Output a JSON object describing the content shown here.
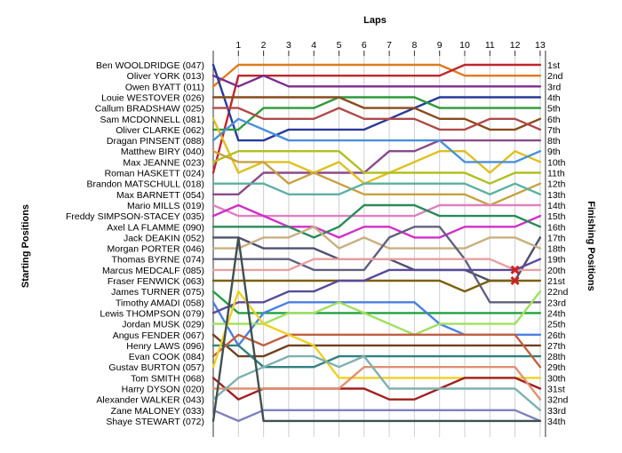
{
  "chart_data": {
    "type": "line",
    "title": "Laps",
    "ylabel_left": "Starting Positions",
    "ylabel_right": "Finishing Positions",
    "x": [
      0,
      1,
      2,
      3,
      4,
      5,
      6,
      7,
      8,
      9,
      10,
      11,
      12,
      13
    ],
    "lap_labels": [
      "1",
      "2",
      "3",
      "4",
      "5",
      "6",
      "7",
      "8",
      "9",
      "10",
      "11",
      "12",
      "13"
    ],
    "drivers": [
      "Ben WOOLDRIDGE (047)",
      "Oliver YORK (013)",
      "Owen BYATT (011)",
      "Louie WESTOVER (026)",
      "Callum BRADSHAW (025)",
      "Sam MCDONNELL (081)",
      "Oliver CLARKE (062)",
      "Dragan PINSENT (088)",
      "Matthew BIRY (040)",
      "Max JEANNE (023)",
      "Roman HASKETT (024)",
      "Brandon MATSCHULL (018)",
      "Max BARNETT (054)",
      "Mario MILLS (019)",
      "Freddy SIMPSON-STACEY (035)",
      "Axel LA FLAMME (090)",
      "Jack DEAKIN (052)",
      "Morgan PORTER (046)",
      "Thomas BYRNE (074)",
      "Marcus MEDCALF (085)",
      "Fraser FENWICK (063)",
      "James TURNER (075)",
      "Timothy AMADI (058)",
      "Lewis THOMPSON (079)",
      "Jordan MUSK (029)",
      "Angus FENDER (067)",
      "Henry LAWS (096)",
      "Evan COOK (084)",
      "Gustav BURTON (057)",
      "Tom SMITH (068)",
      "Harry DYSON (020)",
      "Alexander WALKER (043)",
      "Zane MALONEY (033)",
      "Shaye STEWART (072)"
    ],
    "finishing_positions": [
      "1st",
      "2nd",
      "3rd",
      "4th",
      "5th",
      "6th",
      "7th",
      "8th",
      "9th",
      "10th",
      "11th",
      "12th",
      "13th",
      "14th",
      "15th",
      "16th",
      "17th",
      "18th",
      "19th",
      "20th",
      "21st",
      "22nd",
      "23rd",
      "24th",
      "25th",
      "26th",
      "27th",
      "28th",
      "29th",
      "30th",
      "31st",
      "32nd",
      "33rd",
      "34th"
    ],
    "series": [
      {
        "start": 2,
        "color": "#e07b1e",
        "positions": [
          2,
          0,
          0,
          0,
          0,
          0,
          0,
          0,
          0,
          0,
          1,
          1,
          1,
          1
        ]
      },
      {
        "start": 10,
        "color": "#c0262c",
        "positions": [
          10,
          1,
          1,
          1,
          1,
          1,
          1,
          1,
          1,
          1,
          0,
          0,
          0,
          0
        ]
      },
      {
        "start": 1,
        "color": "#7b2d8f",
        "positions": [
          1,
          2,
          1,
          2,
          2,
          2,
          2,
          2,
          2,
          2,
          2,
          2,
          2,
          2
        ]
      },
      {
        "start": 0,
        "color": "#2a3a9a",
        "positions": [
          0,
          7,
          7,
          6,
          6,
          6,
          6,
          5,
          4,
          3,
          3,
          3,
          3,
          3
        ]
      },
      {
        "start": 6,
        "color": "#2f9a3a",
        "positions": [
          6,
          6,
          4,
          4,
          4,
          3,
          3,
          3,
          3,
          4,
          4,
          4,
          4,
          4
        ]
      },
      {
        "start": 3,
        "color": "#8a4a1c",
        "positions": [
          3,
          3,
          3,
          3,
          3,
          3,
          4,
          4,
          4,
          5,
          5,
          6,
          6,
          5
        ]
      },
      {
        "start": 4,
        "color": "#b04a4a",
        "positions": [
          4,
          4,
          5,
          5,
          5,
          4,
          5,
          5,
          5,
          6,
          6,
          5,
          5,
          6
        ]
      },
      {
        "start": 12,
        "color": "#8a4a8a",
        "positions": [
          12,
          12,
          10,
          10,
          10,
          10,
          10,
          8,
          8,
          7,
          7,
          7,
          7,
          7
        ]
      },
      {
        "start": 5,
        "color": "#e0c020",
        "positions": [
          5,
          10,
          9,
          9,
          10,
          9,
          11,
          10,
          9,
          8,
          8,
          10,
          8,
          9
        ]
      },
      {
        "start": 7,
        "color": "#4a90d9",
        "positions": [
          7,
          5,
          6,
          7,
          7,
          7,
          7,
          7,
          7,
          7,
          9,
          9,
          9,
          8
        ]
      },
      {
        "start": 9,
        "color": "#b0c020",
        "positions": [
          9,
          8,
          8,
          8,
          8,
          8,
          10,
          10,
          10,
          10,
          10,
          11,
          10,
          10
        ]
      },
      {
        "start": 8,
        "color": "#c8a040",
        "positions": [
          8,
          9,
          9,
          11,
          10,
          11,
          12,
          12,
          12,
          12,
          12,
          13,
          12,
          11
        ]
      },
      {
        "start": 11,
        "color": "#5ab0a0",
        "positions": [
          11,
          11,
          11,
          12,
          12,
          12,
          11,
          11,
          11,
          11,
          11,
          12,
          11,
          12
        ]
      },
      {
        "start": 13,
        "color": "#e080c0",
        "positions": [
          13,
          14,
          14,
          14,
          14,
          14,
          14,
          14,
          14,
          13,
          13,
          13,
          13,
          13
        ]
      },
      {
        "start": 14,
        "color": "#d030c8",
        "positions": [
          14,
          13,
          14,
          15,
          15,
          16,
          15,
          15,
          16,
          16,
          15,
          15,
          15,
          14
        ]
      },
      {
        "start": 15,
        "color": "#2a8a5a",
        "positions": [
          15,
          15,
          15,
          15,
          16,
          15,
          13,
          13,
          13,
          14,
          14,
          14,
          14,
          15
        ]
      },
      {
        "start": 16,
        "color": "#505070",
        "positions": [
          16,
          16,
          17,
          17,
          17,
          18,
          18,
          18,
          19,
          19,
          19,
          20,
          20,
          16
        ]
      },
      {
        "start": 17,
        "color": "#c8b080",
        "positions": [
          17,
          17,
          16,
          16,
          15,
          17,
          16,
          17,
          17,
          17,
          17,
          16,
          16,
          17
        ]
      },
      {
        "start": 18,
        "color": "#606080",
        "positions": [
          18,
          18,
          18,
          18,
          19,
          19,
          19,
          16,
          15,
          15,
          18,
          22,
          22,
          22
        ]
      },
      {
        "start": 19,
        "color": "#e8a0a0",
        "positions": [
          19,
          19,
          19,
          19,
          18,
          18,
          18,
          18,
          18,
          18,
          18,
          18,
          19,
          19
        ]
      },
      {
        "start": 20,
        "color": "#7a6010",
        "positions": [
          20,
          20,
          20,
          20,
          20,
          20,
          20,
          20,
          20,
          20,
          21,
          20,
          20,
          20
        ]
      },
      {
        "start": 21,
        "color": "#20a040",
        "positions": [
          21,
          23,
          23,
          23,
          23,
          23,
          23,
          23,
          23,
          23,
          23,
          23,
          23,
          23
        ]
      },
      {
        "start": 22,
        "color": "#4a80e0",
        "positions": [
          22,
          26,
          23,
          22,
          22,
          22,
          22,
          22,
          22,
          24,
          25,
          25,
          25,
          25
        ]
      },
      {
        "start": 23,
        "color": "#5a4a9a",
        "positions": [
          23,
          22,
          22,
          21,
          21,
          20,
          20,
          19,
          19,
          19,
          19,
          19,
          19,
          18
        ]
      },
      {
        "start": 24,
        "color": "#a0e060",
        "positions": [
          24,
          24,
          24,
          23,
          23,
          22,
          23,
          24,
          25,
          24,
          24,
          24,
          24,
          21
        ]
      },
      {
        "start": 25,
        "color": "#704020",
        "positions": [
          25,
          27,
          27,
          26,
          26,
          26,
          26,
          26,
          26,
          26,
          26,
          26,
          26,
          26
        ]
      },
      {
        "start": 26,
        "color": "#308080",
        "positions": [
          26,
          26,
          28,
          28,
          28,
          27,
          27,
          27,
          27,
          27,
          27,
          27,
          27,
          27
        ]
      },
      {
        "start": 27,
        "color": "#c06040",
        "positions": [
          27,
          25,
          26,
          25,
          25,
          25,
          25,
          25,
          25,
          25,
          25,
          25,
          25,
          28
        ]
      },
      {
        "start": 28,
        "color": "#f0d020",
        "positions": [
          28,
          21,
          24,
          25,
          26,
          29,
          29,
          29,
          29,
          29,
          29,
          29,
          29,
          29
        ]
      },
      {
        "start": 29,
        "color": "#a02020",
        "positions": [
          29,
          31,
          30,
          30,
          30,
          30,
          30,
          31,
          31,
          30,
          29,
          29,
          29,
          30
        ]
      },
      {
        "start": 30,
        "color": "#e09070",
        "positions": [
          30,
          30,
          30,
          30,
          30,
          30,
          28,
          28,
          28,
          28,
          28,
          28,
          28,
          31
        ]
      },
      {
        "start": 31,
        "color": "#80b0b0",
        "positions": [
          31,
          29,
          28,
          27,
          27,
          28,
          27,
          30,
          30,
          30,
          30,
          30,
          30,
          32
        ]
      },
      {
        "start": 32,
        "color": "#8080c0",
        "positions": [
          32,
          33,
          32,
          32,
          32,
          32,
          32,
          32,
          32,
          32,
          32,
          32,
          32,
          33
        ]
      },
      {
        "start": 33,
        "color": "#405050",
        "positions": [
          33,
          16,
          33,
          33,
          33,
          33,
          33,
          33,
          33,
          33,
          33,
          33,
          33,
          33
        ]
      }
    ],
    "retired": [
      {
        "lap": 12,
        "position": 19,
        "color": "#d02020"
      },
      {
        "lap": 12,
        "position": 20,
        "color": "#d02020"
      }
    ]
  }
}
